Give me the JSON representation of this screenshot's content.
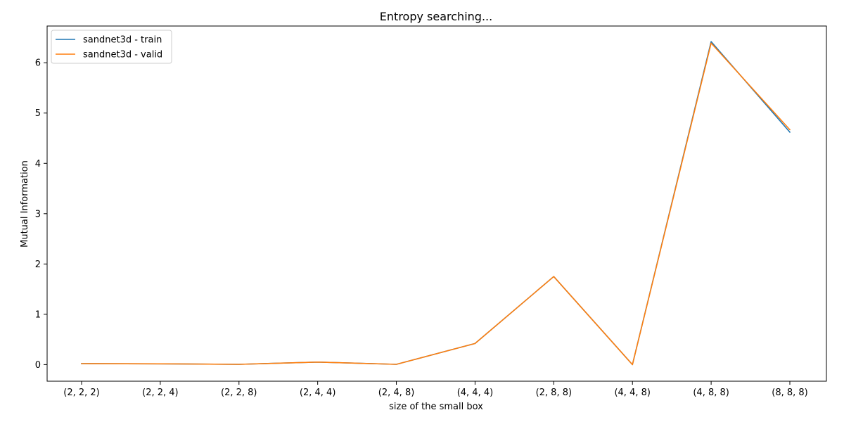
{
  "chart_data": {
    "type": "line",
    "title": "Entropy searching...",
    "xlabel": "size of the small box",
    "ylabel": "Mutual Information",
    "categories": [
      "(2, 2, 2)",
      "(2, 2, 4)",
      "(2, 2, 8)",
      "(2, 4, 4)",
      "(2, 4, 8)",
      "(4, 4, 4)",
      "(2, 8, 8)",
      "(4, 4, 8)",
      "(4, 8, 8)",
      "(8, 8, 8)"
    ],
    "ylim": [
      -0.33,
      6.73
    ],
    "yticks": [
      0,
      1,
      2,
      3,
      4,
      5,
      6
    ],
    "grid": false,
    "legend_position": "top-left",
    "series": [
      {
        "name": "sandnet3d - train",
        "color": "#1f77b4",
        "values": [
          0.02,
          0.015,
          0.005,
          0.05,
          0.005,
          0.42,
          1.75,
          0.0,
          6.42,
          4.62
        ]
      },
      {
        "name": "sandnet3d - valid",
        "color": "#ff7f0e",
        "values": [
          0.02,
          0.015,
          0.005,
          0.05,
          0.005,
          0.42,
          1.75,
          0.0,
          6.39,
          4.67
        ]
      }
    ]
  }
}
